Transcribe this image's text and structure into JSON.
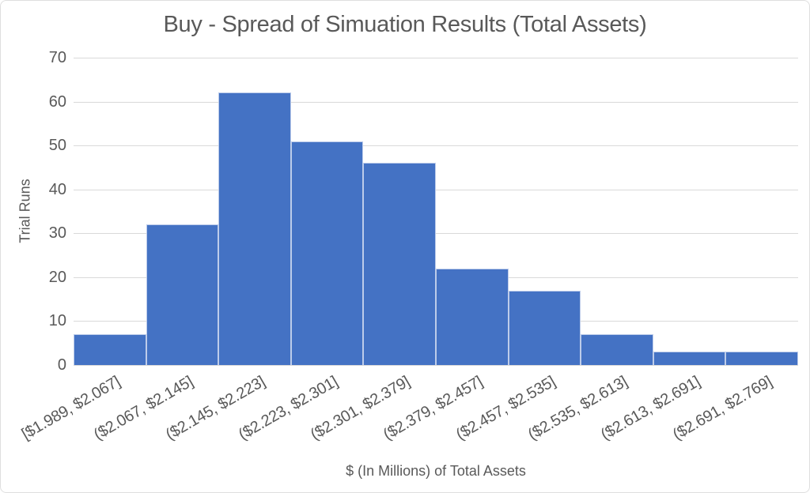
{
  "chart_data": {
    "type": "bar",
    "variant": "histogram",
    "title": "Buy - Spread of Simuation Results (Total Assets)",
    "xlabel": "$ (In Millions) of Total Assets",
    "ylabel": "Trial Runs",
    "categories": [
      "[$1.989, $2.067]",
      "($2.067, $2.145]",
      "($2.145, $2.223]",
      "($2.223, $2.301]",
      "($2.301, $2.379]",
      "($2.379, $2.457]",
      "($2.457, $2.535]",
      "($2.535, $2.613]",
      "($2.613, $2.691]",
      "($2.691, $2.769]"
    ],
    "values": [
      7,
      32,
      62,
      51,
      46,
      22,
      17,
      7,
      3,
      3
    ],
    "ylim": [
      0,
      70
    ],
    "yticks": [
      0,
      10,
      20,
      30,
      40,
      50,
      60,
      70
    ],
    "grid": "horizontal",
    "legend_position": "none",
    "x_tick_rotation_deg": -30,
    "colors": {
      "bar_fill": "#4472C4",
      "bar_border": "#BDCCEA",
      "gridline": "#D9D9D9",
      "axis_line": "#D9D9D9",
      "text": "#595959",
      "background": "#FFFFFF",
      "frame_border": "#DFDFDF"
    }
  }
}
